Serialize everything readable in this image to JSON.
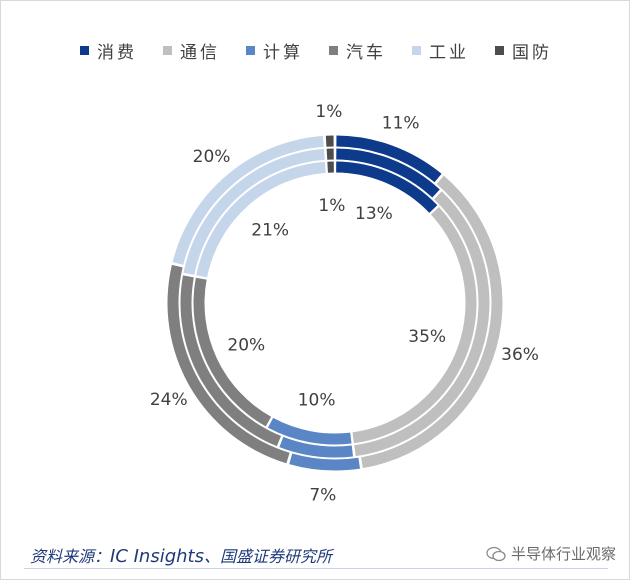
{
  "chart_data": {
    "type": "donut",
    "categories": [
      "消费",
      "通信",
      "计算",
      "汽车",
      "工业",
      "国防"
    ],
    "colors": [
      "#0e3a8c",
      "#bfbfbf",
      "#5b86c6",
      "#7f7f7f",
      "#c5d5ea",
      "#4d4d4d"
    ],
    "series": [
      {
        "values": [
          11,
          36,
          7,
          24,
          20,
          1
        ],
        "labels": [
          "11%",
          "36%",
          "7%",
          "24%",
          "20%",
          "1%"
        ]
      },
      {
        "values": [
          12,
          36,
          8,
          22,
          21,
          1
        ],
        "labels": [
          "",
          "",
          "",
          "",
          "",
          ""
        ]
      },
      {
        "values": [
          13,
          35,
          10,
          20,
          21,
          1
        ],
        "labels": [
          "13%",
          "35%",
          "10%",
          "20%",
          "21%",
          "1%"
        ]
      }
    ],
    "legend": [
      "消费",
      "通信",
      "计算",
      "汽车",
      "工业",
      "国防"
    ],
    "legend_position": "top"
  },
  "footer": {
    "source_prefix": "资料来源：",
    "source_main": "IC Insights",
    "source_suffix": "、国盛证券研究所",
    "watermark": "半导体行业观察"
  }
}
